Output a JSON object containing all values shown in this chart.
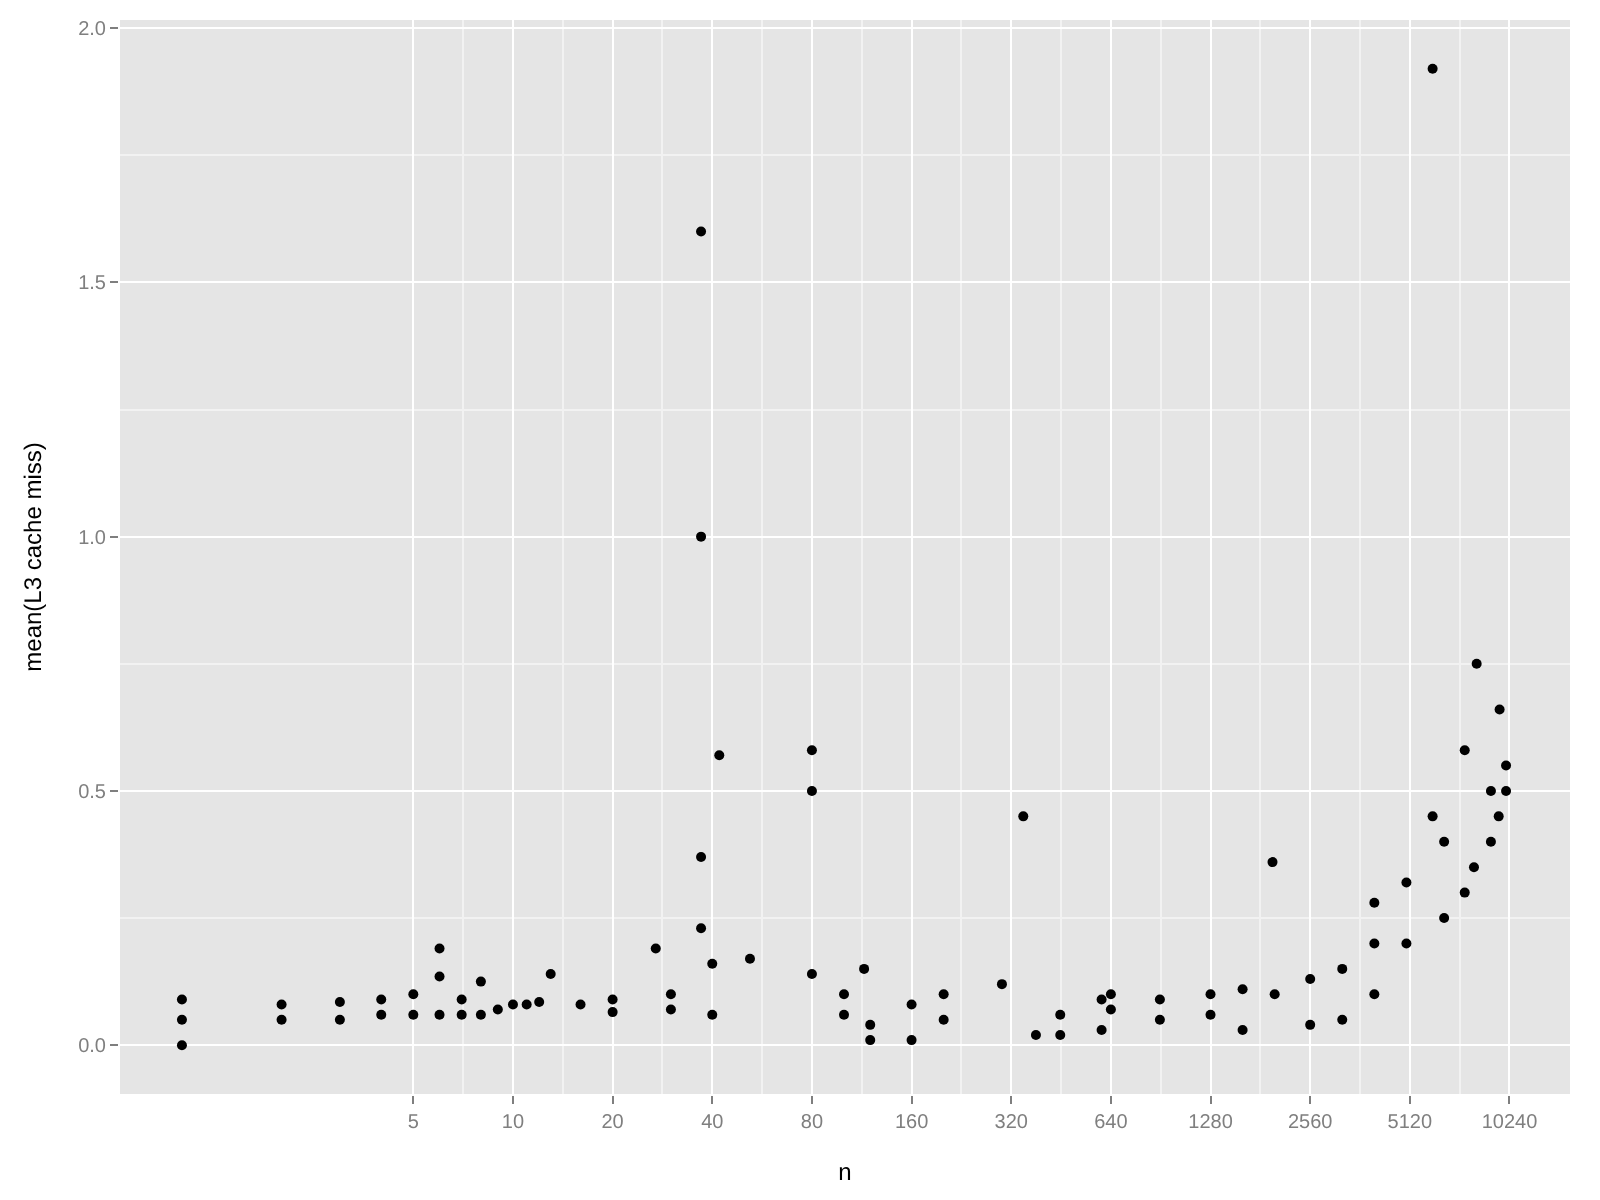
{
  "chart_data": {
    "type": "scatter",
    "xlabel": "n",
    "ylabel": "mean(L3 cache miss)",
    "log": "x",
    "grid": true,
    "marker": "circle",
    "xlim": [
      0.65,
      15600
    ],
    "ylim": [
      -0.096,
      2.016
    ],
    "xticks": [
      5,
      10,
      20,
      40,
      80,
      160,
      320,
      640,
      1280,
      2560,
      5120,
      10240
    ],
    "yticks": [
      {
        "value": 0,
        "label": "0.0"
      },
      0.5,
      {
        "value": 1,
        "label": "1.0"
      },
      1.5,
      {
        "value": 2,
        "label": "2.0"
      }
    ],
    "series": [
      {
        "color": "#000000",
        "x": [
          1,
          1,
          1,
          2,
          2,
          3,
          3,
          4,
          4,
          5,
          5,
          6,
          6,
          6,
          7,
          7,
          8,
          8,
          9,
          10,
          11,
          12,
          13,
          16,
          20,
          20,
          27,
          30,
          30,
          37,
          37,
          37,
          37,
          42,
          40,
          40,
          52,
          80,
          80,
          80,
          100,
          100,
          115,
          120,
          120,
          160,
          160,
          200,
          200,
          300,
          348,
          380,
          450,
          450,
          600,
          600,
          640,
          640,
          900,
          900,
          1280,
          1280,
          1600,
          1600,
          1970,
          2000,
          2560,
          2560,
          3200,
          3200,
          4000,
          4000,
          4000,
          5000,
          5000,
          6000,
          6000,
          6500,
          6500,
          7500,
          7500,
          8150,
          8000,
          9000,
          9000,
          9560,
          9500,
          10000,
          10000
        ],
        "values": [
          0.0,
          0.05,
          0.09,
          0.05,
          0.08,
          0.05,
          0.085,
          0.06,
          0.09,
          0.06,
          0.1,
          0.06,
          0.19,
          0.135,
          0.06,
          0.09,
          0.06,
          0.125,
          0.07,
          0.08,
          0.08,
          0.085,
          0.14,
          0.08,
          0.065,
          0.09,
          0.19,
          0.07,
          0.1,
          1.6,
          1.0,
          0.37,
          0.23,
          0.57,
          0.06,
          0.16,
          0.17,
          0.58,
          0.5,
          0.14,
          0.06,
          0.1,
          0.15,
          0.01,
          0.04,
          0.01,
          0.08,
          0.05,
          0.1,
          0.12,
          0.45,
          0.02,
          0.02,
          0.06,
          0.03,
          0.09,
          0.07,
          0.1,
          0.05,
          0.09,
          0.06,
          0.1,
          0.03,
          0.11,
          0.36,
          0.1,
          0.04,
          0.13,
          0.05,
          0.15,
          0.1,
          0.28,
          0.2,
          0.2,
          0.32,
          0.45,
          1.92,
          0.25,
          0.4,
          0.58,
          0.3,
          0.75,
          0.35,
          0.4,
          0.5,
          0.66,
          0.45,
          0.55,
          0.5
        ]
      }
    ]
  }
}
